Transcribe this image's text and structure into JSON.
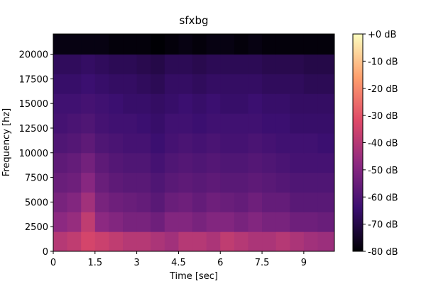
{
  "chart_data": {
    "type": "heatmap",
    "title": "sfxbg",
    "x_label": "Time [sec]",
    "y_label": "Frequency [hz]",
    "colormap": "magma",
    "x": [
      0.25,
      0.75,
      1.25,
      1.75,
      2.25,
      2.75,
      3.25,
      3.75,
      4.25,
      4.75,
      5.25,
      5.75,
      6.25,
      6.75,
      7.25,
      7.75,
      8.25,
      8.75,
      9.25,
      9.75
    ],
    "y": [
      1000,
      3000,
      5000,
      7000,
      9000,
      11000,
      13000,
      15000,
      17000,
      19000,
      21000
    ],
    "values": [
      [
        -40,
        -38,
        -34,
        -36,
        -38,
        -40,
        -40,
        -42,
        -44,
        -40,
        -40,
        -42,
        -38,
        -40,
        -42,
        -42,
        -40,
        -42,
        -44,
        -45
      ],
      [
        -48,
        -46,
        -38,
        -48,
        -50,
        -52,
        -52,
        -54,
        -50,
        -50,
        -52,
        -50,
        -50,
        -52,
        -50,
        -52,
        -52,
        -54,
        -54,
        -55
      ],
      [
        -52,
        -50,
        -44,
        -52,
        -54,
        -55,
        -56,
        -58,
        -55,
        -54,
        -56,
        -54,
        -55,
        -56,
        -54,
        -56,
        -56,
        -58,
        -58,
        -58
      ],
      [
        -55,
        -54,
        -49,
        -55,
        -57,
        -58,
        -58,
        -60,
        -58,
        -57,
        -58,
        -57,
        -58,
        -58,
        -57,
        -58,
        -59,
        -60,
        -60,
        -60
      ],
      [
        -57,
        -56,
        -53,
        -57,
        -59,
        -60,
        -60,
        -62,
        -60,
        -59,
        -60,
        -59,
        -60,
        -60,
        -59,
        -60,
        -61,
        -62,
        -62,
        -62
      ],
      [
        -60,
        -59,
        -57,
        -60,
        -61,
        -62,
        -62,
        -64,
        -62,
        -61,
        -62,
        -61,
        -62,
        -62,
        -61,
        -62,
        -63,
        -63,
        -63,
        -64
      ],
      [
        -62,
        -61,
        -60,
        -62,
        -63,
        -63,
        -64,
        -65,
        -63,
        -63,
        -64,
        -63,
        -63,
        -63,
        -63,
        -64,
        -64,
        -65,
        -65,
        -65
      ],
      [
        -63,
        -63,
        -62,
        -63,
        -64,
        -65,
        -65,
        -66,
        -65,
        -64,
        -65,
        -64,
        -65,
        -65,
        -64,
        -65,
        -65,
        -66,
        -66,
        -66
      ],
      [
        -65,
        -65,
        -64,
        -65,
        -66,
        -66,
        -67,
        -68,
        -66,
        -66,
        -67,
        -66,
        -66,
        -66,
        -66,
        -67,
        -67,
        -67,
        -68,
        -68
      ],
      [
        -67,
        -67,
        -66,
        -67,
        -68,
        -68,
        -69,
        -70,
        -68,
        -68,
        -69,
        -68,
        -68,
        -68,
        -68,
        -69,
        -69,
        -69,
        -70,
        -70
      ],
      [
        -78,
        -78,
        -78,
        -78,
        -79,
        -79,
        -79,
        -80,
        -79,
        -78,
        -79,
        -78,
        -78,
        -79,
        -78,
        -79,
        -79,
        -79,
        -79,
        -79
      ]
    ],
    "xlim": [
      0,
      10.1
    ],
    "ylim": [
      0,
      22050
    ],
    "xticks": [
      0,
      1.5,
      3,
      4.5,
      6,
      7.5,
      9
    ],
    "yticks": [
      0,
      2500,
      5000,
      7500,
      10000,
      12500,
      15000,
      17500,
      20000
    ],
    "colorbar": {
      "clim": [
        -80,
        0
      ],
      "ticks": [
        {
          "value": 0,
          "label": "+0 dB"
        },
        {
          "value": -10,
          "label": "-10 dB"
        },
        {
          "value": -20,
          "label": "-20 dB"
        },
        {
          "value": -30,
          "label": "-30 dB"
        },
        {
          "value": -40,
          "label": "-40 dB"
        },
        {
          "value": -50,
          "label": "-50 dB"
        },
        {
          "value": -60,
          "label": "-60 dB"
        },
        {
          "value": -70,
          "label": "-70 dB"
        },
        {
          "value": -80,
          "label": "-80 dB"
        }
      ]
    }
  }
}
